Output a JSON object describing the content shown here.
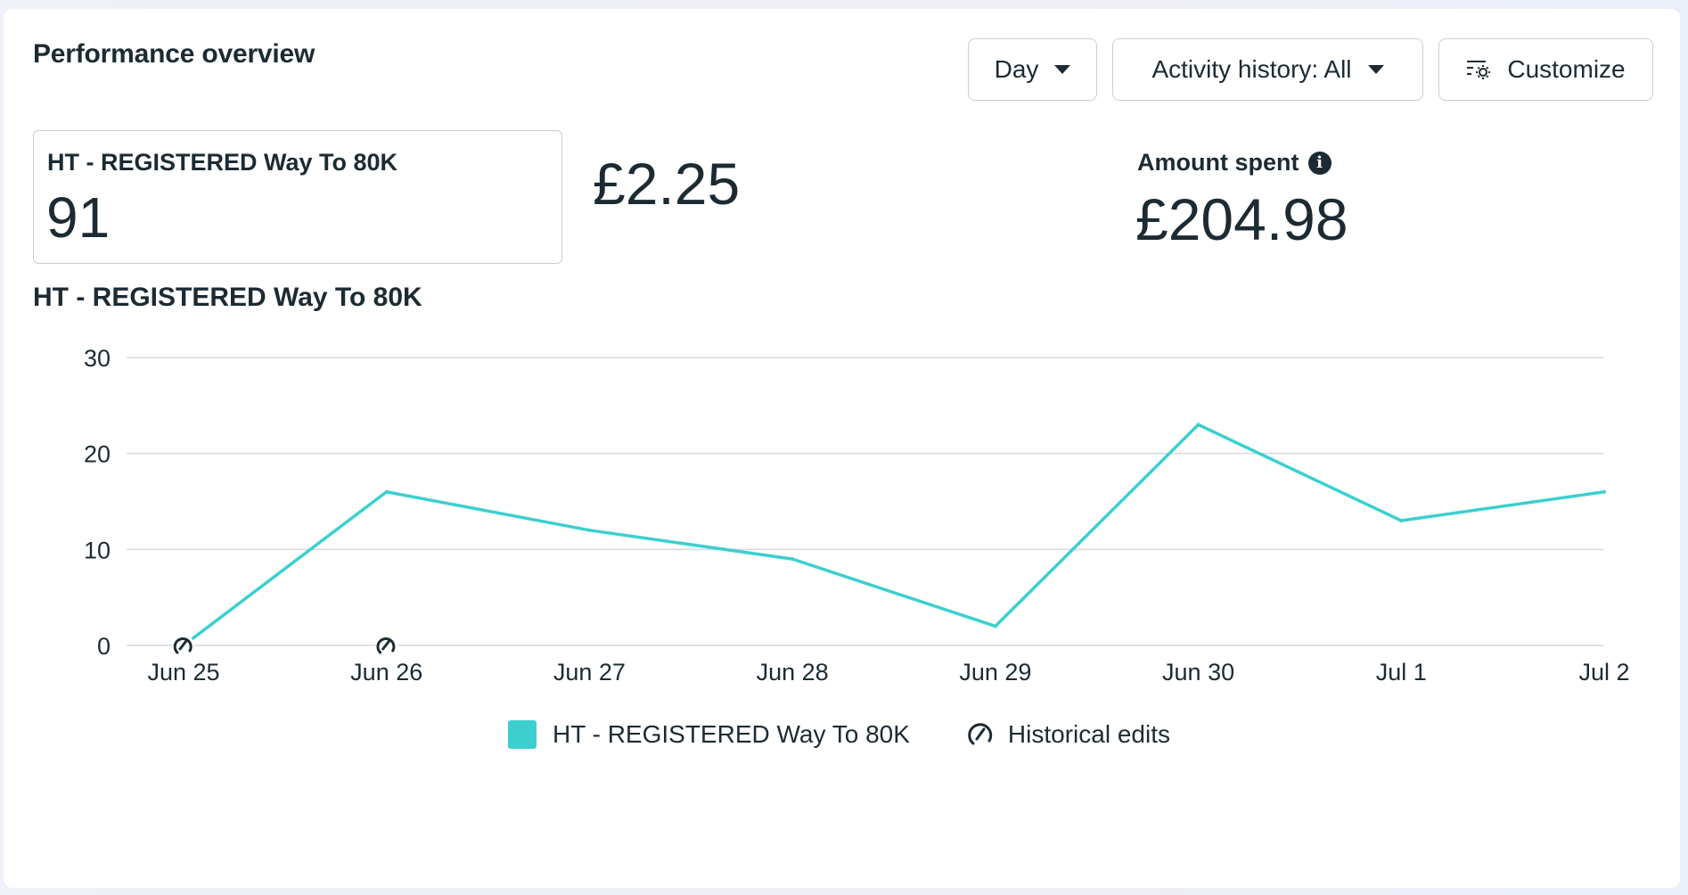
{
  "header": {
    "title": "Performance overview",
    "day_label": "Day",
    "activity_label": "Activity history: All",
    "customize_label": "Customize"
  },
  "metrics": {
    "result_label": "HT - REGISTERED Way To 80K",
    "result_value": "91",
    "cost_per_result": "£2.25",
    "spent_label": "Amount spent",
    "spent_value": "£204.98"
  },
  "chart_title": "HT - REGISTERED Way To 80K",
  "legend": {
    "series_label": "HT - REGISTERED Way To 80K",
    "edits_label": "Historical edits"
  },
  "colors": {
    "series": "#3ccfcf",
    "grid": "#d6d9de",
    "text": "#1c2b33"
  },
  "chart_data": {
    "type": "line",
    "categories": [
      "Jun 25",
      "Jun 26",
      "Jun 27",
      "Jun 28",
      "Jun 29",
      "Jun 30",
      "Jul 1",
      "Jul 2"
    ],
    "series": [
      {
        "name": "HT - REGISTERED Way To 80K",
        "values": [
          0,
          16,
          12,
          9,
          2,
          23,
          13,
          16
        ]
      }
    ],
    "ylim": [
      0,
      30
    ],
    "yticks": [
      0,
      10,
      20,
      30
    ],
    "historical_edits": [
      "Jun 25",
      "Jun 26"
    ],
    "grid": true,
    "legend": "bottom"
  }
}
